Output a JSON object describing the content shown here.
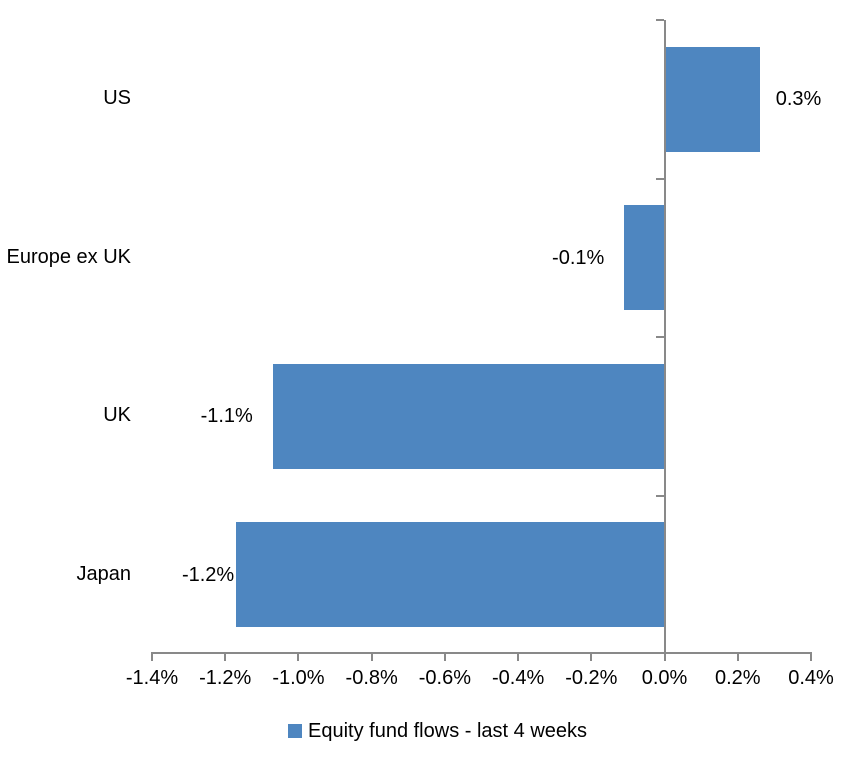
{
  "chart_data": {
    "type": "bar",
    "orientation": "horizontal",
    "title": "",
    "xlabel": "",
    "ylabel": "",
    "unit": "%",
    "categories": [
      "US",
      "Europe ex UK",
      "UK",
      "Japan"
    ],
    "series": [
      {
        "name": "Equity fund flows - last 4 weeks",
        "values": [
          0.26,
          -0.11,
          -1.07,
          -1.17
        ],
        "data_labels": [
          "0.3%",
          "-0.1%",
          "-1.1%",
          "-1.2%"
        ],
        "color": "#4E86C0"
      }
    ],
    "xlim": [
      -1.4,
      0.4
    ],
    "x_tick_values": [
      -1.4,
      -1.2,
      -1.0,
      -0.8,
      -0.6,
      -0.4,
      -0.2,
      0.0,
      0.2,
      0.4
    ],
    "x_tick_labels": [
      "-1.4%",
      "-1.2%",
      "-1.0%",
      "-0.8%",
      "-0.6%",
      "-0.4%",
      "-0.2%",
      "0.0%",
      "0.2%",
      "0.4%"
    ],
    "grid": false,
    "legend_position": "bottom",
    "axis_color": "#898989",
    "text_color": "#000000",
    "background_color": "#FFFFFF"
  }
}
